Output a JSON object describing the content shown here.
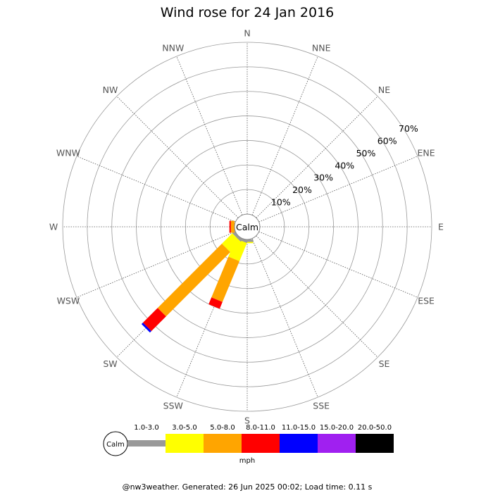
{
  "chart_data": {
    "type": "windrose",
    "title": "Wind rose for 24 Jan 2016",
    "directions": [
      "N",
      "NNE",
      "NE",
      "ENE",
      "E",
      "ESE",
      "SE",
      "SSE",
      "S",
      "SSW",
      "SW",
      "WSW",
      "W",
      "WNW",
      "NW",
      "NNW"
    ],
    "radial_ticks": [
      "10%",
      "20%",
      "30%",
      "40%",
      "50%",
      "60%",
      "70%"
    ],
    "radial_max": 70,
    "calm_label": "Calm",
    "unit": "mph",
    "speed_bins": [
      {
        "label": "1.0-3.0",
        "color": "#999999"
      },
      {
        "label": "3.0-5.0",
        "color": "#ffff00"
      },
      {
        "label": "5.0-8.0",
        "color": "#ffa500"
      },
      {
        "label": "8.0-11.0",
        "color": "#ff0000"
      },
      {
        "label": "11.0-15.0",
        "color": "#0000ff"
      },
      {
        "label": "15.0-20.0",
        "color": "#a020f0"
      },
      {
        "label": "20.0-50.0",
        "color": "#000000"
      }
    ],
    "series": [
      {
        "direction": "S",
        "values": [
          1,
          0.5,
          0,
          0,
          0,
          0,
          0
        ]
      },
      {
        "direction": "SSW",
        "values": [
          1,
          8,
          18,
          3,
          0,
          0,
          0
        ]
      },
      {
        "direction": "SW",
        "values": [
          1,
          6,
          37,
          8.5,
          0.8,
          0,
          0
        ]
      },
      {
        "direction": "WSW",
        "values": [
          0.5,
          0,
          0,
          0,
          0,
          0,
          0
        ]
      },
      {
        "direction": "W",
        "values": [
          0,
          0,
          1.5,
          0.6,
          0,
          0,
          0
        ]
      }
    ]
  },
  "footer": "@nw3weather. Generated: 26 Jun 2025 00:02; Load time: 0.11 s"
}
